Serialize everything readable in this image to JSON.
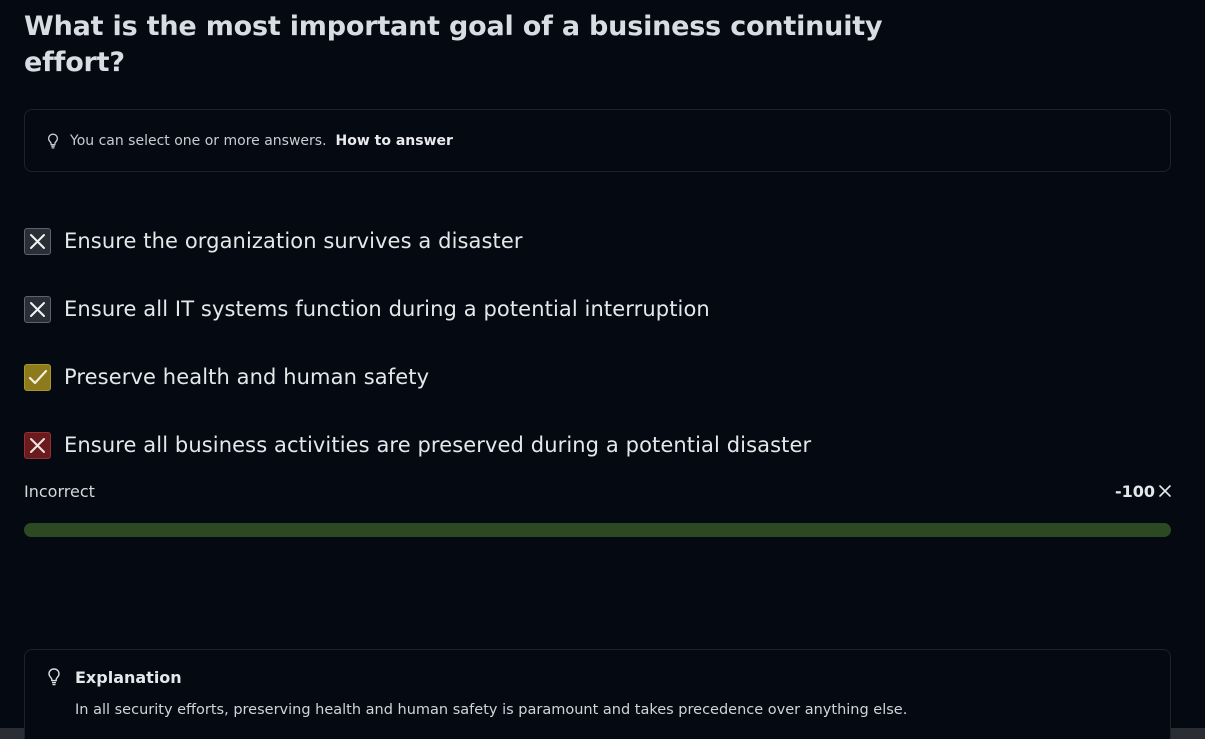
{
  "question": {
    "title": "What is the most important goal of a business continuity effort?"
  },
  "hint": {
    "icon": "lightbulb-icon",
    "text": "You can select one or more answers.",
    "link_label": "How to answer"
  },
  "options": [
    {
      "label": "Ensure the organization survives a disaster",
      "state": "not-selected-incorrect",
      "mark": "x"
    },
    {
      "label": "Ensure all IT systems function during a potential interruption",
      "state": "not-selected-incorrect",
      "mark": "x"
    },
    {
      "label": "Preserve health and human safety",
      "state": "correct",
      "mark": "check"
    },
    {
      "label": "Ensure all business activities are preserved during a potential disaster",
      "state": "selected-incorrect",
      "mark": "x"
    }
  ],
  "result": {
    "status": "Incorrect",
    "score": "-100",
    "score_icon": "close-icon",
    "progress_fraction": 1.0
  },
  "explanation": {
    "icon": "lightbulb-icon",
    "title": "Explanation",
    "body": "In all security efforts, preserving health and human safety is paramount and takes precedence over anything else."
  },
  "colors": {
    "background": "#050a12",
    "correct": "#8c7a1c",
    "incorrect": "#6a1b1e",
    "progress": "#2c4a21"
  }
}
